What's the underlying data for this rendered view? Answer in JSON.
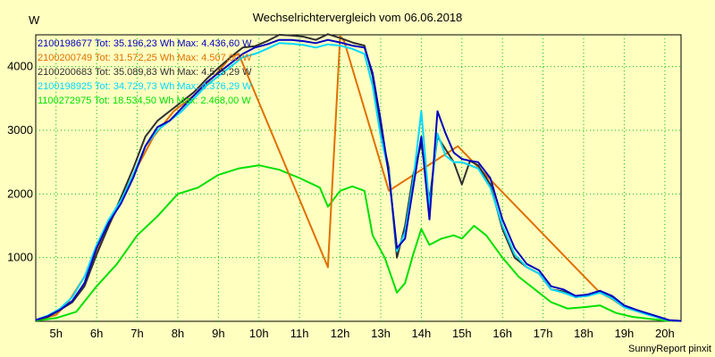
{
  "chart_data": {
    "type": "line",
    "title": "Wechselrichtervergleich vom 06.06.2018",
    "ylabel": "W",
    "footer": "SunnyReport pinxit",
    "x_ticks": [
      {
        "hour": 5,
        "label": "5h"
      },
      {
        "hour": 6,
        "label": "6h"
      },
      {
        "hour": 7,
        "label": "7h"
      },
      {
        "hour": 8,
        "label": "8h"
      },
      {
        "hour": 9,
        "label": "9h"
      },
      {
        "hour": 10,
        "label": "10h"
      },
      {
        "hour": 11,
        "label": "11h"
      },
      {
        "hour": 12,
        "label": "12h"
      },
      {
        "hour": 13,
        "label": "13h"
      },
      {
        "hour": 14,
        "label": "14h"
      },
      {
        "hour": 15,
        "label": "15h"
      },
      {
        "hour": 16,
        "label": "16h"
      },
      {
        "hour": 17,
        "label": "17h"
      },
      {
        "hour": 18,
        "label": "18h"
      },
      {
        "hour": 19,
        "label": "19h"
      },
      {
        "hour": 20,
        "label": "20h"
      }
    ],
    "y_ticks": [
      {
        "value": 1000,
        "label": "1000"
      },
      {
        "value": 2000,
        "label": "2000"
      },
      {
        "value": 3000,
        "label": "3000"
      },
      {
        "value": 4000,
        "label": "4000"
      }
    ],
    "xlim": [
      4.5,
      20.4
    ],
    "ylim": [
      0,
      4500
    ],
    "grid": true,
    "legend_position": "top-left",
    "series": [
      {
        "name": "2100198677 Tot: 35.196,23 Wh Max: 4.436,60 W",
        "color": "#0000c0",
        "points": [
          [
            4.5,
            20
          ],
          [
            4.8,
            80
          ],
          [
            5.1,
            180
          ],
          [
            5.4,
            320
          ],
          [
            5.7,
            600
          ],
          [
            6.0,
            1150
          ],
          [
            6.3,
            1550
          ],
          [
            6.6,
            1850
          ],
          [
            6.9,
            2250
          ],
          [
            7.2,
            2750
          ],
          [
            7.5,
            3050
          ],
          [
            7.8,
            3150
          ],
          [
            8.1,
            3350
          ],
          [
            8.4,
            3550
          ],
          [
            8.7,
            3750
          ],
          [
            9.0,
            3900
          ],
          [
            9.3,
            4050
          ],
          [
            9.6,
            4200
          ],
          [
            9.9,
            4300
          ],
          [
            10.2,
            4350
          ],
          [
            10.5,
            4420
          ],
          [
            10.8,
            4420
          ],
          [
            11.1,
            4400
          ],
          [
            11.4,
            4370
          ],
          [
            11.7,
            4420
          ],
          [
            12.0,
            4380
          ],
          [
            12.3,
            4330
          ],
          [
            12.6,
            4300
          ],
          [
            12.8,
            3900
          ],
          [
            13.0,
            3150
          ],
          [
            13.2,
            2300
          ],
          [
            13.4,
            1150
          ],
          [
            13.6,
            1300
          ],
          [
            13.8,
            2100
          ],
          [
            14.0,
            2900
          ],
          [
            14.2,
            1600
          ],
          [
            14.4,
            3300
          ],
          [
            14.6,
            2950
          ],
          [
            14.8,
            2650
          ],
          [
            15.0,
            2550
          ],
          [
            15.2,
            2520
          ],
          [
            15.4,
            2500
          ],
          [
            15.7,
            2250
          ],
          [
            16.0,
            1600
          ],
          [
            16.3,
            1150
          ],
          [
            16.6,
            900
          ],
          [
            16.9,
            800
          ],
          [
            17.2,
            550
          ],
          [
            17.5,
            500
          ],
          [
            17.8,
            400
          ],
          [
            18.1,
            420
          ],
          [
            18.4,
            480
          ],
          [
            18.7,
            400
          ],
          [
            19.0,
            250
          ],
          [
            19.3,
            180
          ],
          [
            19.6,
            120
          ],
          [
            19.9,
            60
          ],
          [
            20.1,
            20
          ],
          [
            20.4,
            5
          ]
        ]
      },
      {
        "name": "2100200749 Tot: 31.572,25 Wh Max: 4.507,00 W",
        "color": "#e07000",
        "points": [
          [
            4.5,
            20
          ],
          [
            5.0,
            100
          ],
          [
            5.3,
            300
          ],
          [
            5.8,
            800
          ],
          [
            6.3,
            1500
          ],
          [
            6.9,
            2300
          ],
          [
            7.4,
            2900
          ],
          [
            7.9,
            3300
          ],
          [
            8.4,
            3550
          ],
          [
            8.9,
            3850
          ],
          [
            9.3,
            4150
          ],
          [
            9.5,
            4200
          ],
          [
            11.7,
            850
          ],
          [
            12.0,
            4480
          ],
          [
            12.1,
            4400
          ],
          [
            13.2,
            2050
          ],
          [
            14.9,
            2750
          ],
          [
            18.4,
            450
          ],
          [
            18.7,
            350
          ],
          [
            19.0,
            220
          ],
          [
            19.5,
            120
          ],
          [
            20.0,
            30
          ],
          [
            20.2,
            5
          ]
        ]
      },
      {
        "name": "2100200683 Tot: 35.089,83 Wh Max: 4.525,29 W",
        "color": "#303030",
        "points": [
          [
            4.5,
            20
          ],
          [
            4.8,
            70
          ],
          [
            5.1,
            180
          ],
          [
            5.4,
            300
          ],
          [
            5.7,
            550
          ],
          [
            6.0,
            1050
          ],
          [
            6.3,
            1500
          ],
          [
            6.6,
            1950
          ],
          [
            6.9,
            2400
          ],
          [
            7.2,
            2900
          ],
          [
            7.5,
            3150
          ],
          [
            7.8,
            3300
          ],
          [
            8.1,
            3450
          ],
          [
            8.4,
            3600
          ],
          [
            8.7,
            3800
          ],
          [
            9.0,
            3980
          ],
          [
            9.3,
            4150
          ],
          [
            9.6,
            4300
          ],
          [
            9.9,
            4320
          ],
          [
            10.2,
            4400
          ],
          [
            10.5,
            4500
          ],
          [
            10.8,
            4490
          ],
          [
            11.1,
            4470
          ],
          [
            11.4,
            4420
          ],
          [
            11.7,
            4510
          ],
          [
            12.0,
            4450
          ],
          [
            12.3,
            4380
          ],
          [
            12.6,
            4330
          ],
          [
            12.8,
            3850
          ],
          [
            13.0,
            3000
          ],
          [
            13.2,
            2400
          ],
          [
            13.4,
            1000
          ],
          [
            13.6,
            1500
          ],
          [
            13.8,
            2300
          ],
          [
            14.0,
            2800
          ],
          [
            14.2,
            1900
          ],
          [
            14.4,
            2900
          ],
          [
            14.6,
            2700
          ],
          [
            14.8,
            2500
          ],
          [
            15.0,
            2150
          ],
          [
            15.2,
            2520
          ],
          [
            15.4,
            2450
          ],
          [
            15.7,
            2150
          ],
          [
            16.0,
            1450
          ],
          [
            16.3,
            1000
          ],
          [
            16.6,
            850
          ],
          [
            16.9,
            750
          ],
          [
            17.2,
            500
          ],
          [
            17.5,
            470
          ],
          [
            17.8,
            380
          ],
          [
            18.1,
            400
          ],
          [
            18.4,
            460
          ],
          [
            18.7,
            380
          ],
          [
            19.0,
            240
          ],
          [
            19.3,
            170
          ],
          [
            19.6,
            110
          ],
          [
            19.9,
            50
          ],
          [
            20.1,
            15
          ],
          [
            20.4,
            5
          ]
        ]
      },
      {
        "name": "2100198925 Tot: 34.729,73 Wh Max: 4.376,29 W",
        "color": "#00d8ff",
        "points": [
          [
            4.5,
            20
          ],
          [
            4.8,
            90
          ],
          [
            5.1,
            200
          ],
          [
            5.4,
            380
          ],
          [
            5.7,
            700
          ],
          [
            6.0,
            1200
          ],
          [
            6.3,
            1600
          ],
          [
            6.6,
            1900
          ],
          [
            6.9,
            2300
          ],
          [
            7.2,
            2750
          ],
          [
            7.5,
            3000
          ],
          [
            7.8,
            3150
          ],
          [
            8.1,
            3300
          ],
          [
            8.4,
            3500
          ],
          [
            8.7,
            3700
          ],
          [
            9.0,
            3850
          ],
          [
            9.3,
            4000
          ],
          [
            9.6,
            4150
          ],
          [
            9.9,
            4200
          ],
          [
            10.2,
            4280
          ],
          [
            10.5,
            4370
          ],
          [
            10.8,
            4360
          ],
          [
            11.1,
            4340
          ],
          [
            11.4,
            4300
          ],
          [
            11.7,
            4350
          ],
          [
            12.0,
            4330
          ],
          [
            12.3,
            4280
          ],
          [
            12.6,
            4200
          ],
          [
            12.8,
            3700
          ],
          [
            13.0,
            2900
          ],
          [
            13.2,
            2350
          ],
          [
            13.4,
            1100
          ],
          [
            13.6,
            1400
          ],
          [
            13.8,
            2200
          ],
          [
            14.0,
            3300
          ],
          [
            14.2,
            1800
          ],
          [
            14.4,
            2950
          ],
          [
            14.6,
            2600
          ],
          [
            14.8,
            2500
          ],
          [
            15.0,
            2500
          ],
          [
            15.2,
            2450
          ],
          [
            15.4,
            2400
          ],
          [
            15.7,
            2100
          ],
          [
            16.0,
            1500
          ],
          [
            16.3,
            1050
          ],
          [
            16.6,
            850
          ],
          [
            16.9,
            750
          ],
          [
            17.2,
            500
          ],
          [
            17.5,
            450
          ],
          [
            17.8,
            380
          ],
          [
            18.1,
            400
          ],
          [
            18.4,
            450
          ],
          [
            18.7,
            360
          ],
          [
            19.0,
            220
          ],
          [
            19.3,
            160
          ],
          [
            19.6,
            100
          ],
          [
            19.9,
            50
          ],
          [
            20.1,
            15
          ],
          [
            20.4,
            5
          ]
        ]
      },
      {
        "name": "1100272975 Tot: 18.534,50 Wh Max: 2.468,00 W",
        "color": "#00e000",
        "points": [
          [
            4.5,
            10
          ],
          [
            5.0,
            50
          ],
          [
            5.5,
            150
          ],
          [
            6.0,
            550
          ],
          [
            6.5,
            900
          ],
          [
            7.0,
            1350
          ],
          [
            7.5,
            1650
          ],
          [
            8.0,
            2000
          ],
          [
            8.5,
            2100
          ],
          [
            9.0,
            2300
          ],
          [
            9.5,
            2400
          ],
          [
            10.0,
            2450
          ],
          [
            10.5,
            2380
          ],
          [
            11.0,
            2250
          ],
          [
            11.5,
            2100
          ],
          [
            11.7,
            1800
          ],
          [
            12.0,
            2050
          ],
          [
            12.3,
            2120
          ],
          [
            12.6,
            2050
          ],
          [
            12.8,
            1350
          ],
          [
            13.1,
            1000
          ],
          [
            13.4,
            450
          ],
          [
            13.6,
            600
          ],
          [
            13.8,
            1050
          ],
          [
            14.0,
            1450
          ],
          [
            14.2,
            1200
          ],
          [
            14.5,
            1300
          ],
          [
            14.8,
            1350
          ],
          [
            15.0,
            1300
          ],
          [
            15.3,
            1500
          ],
          [
            15.6,
            1350
          ],
          [
            16.0,
            1000
          ],
          [
            16.4,
            700
          ],
          [
            16.8,
            500
          ],
          [
            17.2,
            300
          ],
          [
            17.6,
            200
          ],
          [
            18.0,
            220
          ],
          [
            18.4,
            250
          ],
          [
            18.8,
            130
          ],
          [
            19.2,
            70
          ],
          [
            19.6,
            40
          ],
          [
            20.0,
            10
          ],
          [
            20.2,
            5
          ]
        ]
      }
    ]
  }
}
